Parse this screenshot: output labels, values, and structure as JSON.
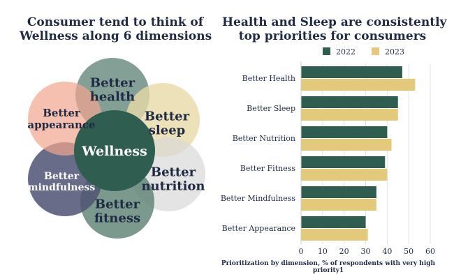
{
  "left": {
    "title_lines": [
      "Consumer tend to think of",
      "Wellness along 6 dimensions"
    ],
    "center_label": "Wellness",
    "dimensions": [
      {
        "lines": [
          "Better",
          "health"
        ],
        "color": "#5b7f72"
      },
      {
        "lines": [
          "Better",
          "sleep"
        ],
        "color": "#e8d9a8"
      },
      {
        "lines": [
          "Better",
          "nutrition"
        ],
        "color": "#d9d9d9"
      },
      {
        "lines": [
          "Better",
          "fitness"
        ],
        "color": "#5b7f72"
      },
      {
        "lines": [
          "Better",
          "mindfulness"
        ],
        "color": "#4f5273"
      },
      {
        "lines": [
          "Better",
          "appearance"
        ],
        "color": "#f2a58e"
      }
    ],
    "center_color": "#2f5e51"
  },
  "right": {
    "title_lines": [
      "Health and Sleep are consistently",
      "top priorities for consumers"
    ]
  },
  "chart_data": {
    "type": "bar",
    "orientation": "horizontal",
    "title": "Health and Sleep are consistently top priorities for consumers",
    "xlabel": "Prioritization by dimension, % of respondents with very high priority1",
    "categories": [
      "Better Health",
      "Better Sleep",
      "Better Nutrition",
      "Better Fitness",
      "Better Mindfulness",
      "Better Appearance"
    ],
    "series": [
      {
        "name": "2022",
        "color": "#2f5e51",
        "values": [
          47,
          45,
          40,
          39,
          35,
          30
        ]
      },
      {
        "name": "2023",
        "color": "#e3c97a",
        "values": [
          53,
          45,
          42,
          40,
          35,
          31
        ]
      }
    ],
    "xlim": [
      0,
      60
    ],
    "xticks": [
      0,
      10,
      20,
      30,
      40,
      50,
      60
    ],
    "grid": true,
    "legend_position": "top"
  }
}
